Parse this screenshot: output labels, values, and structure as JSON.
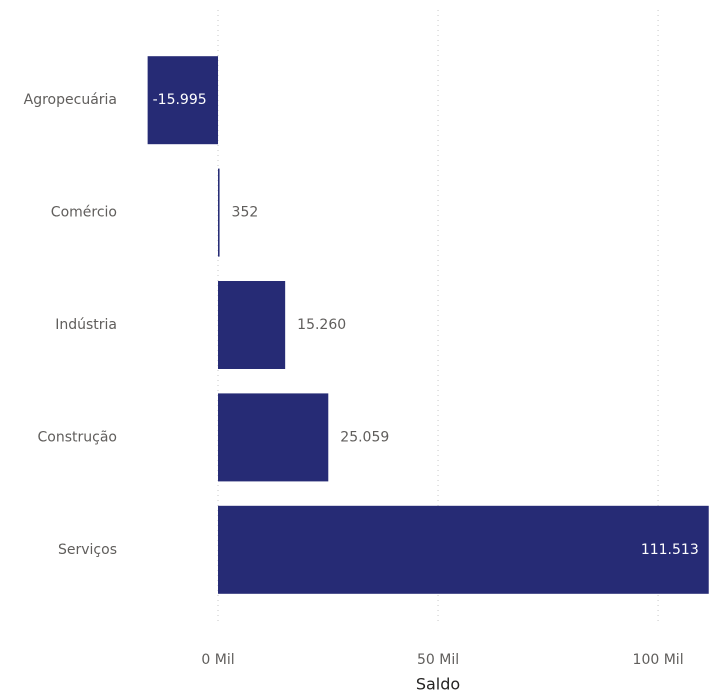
{
  "chart_data": {
    "type": "bar",
    "orientation": "horizontal",
    "categories": [
      "Agropecuária",
      "Comércio",
      "Indústria",
      "Construção",
      "Serviços"
    ],
    "values": [
      -15995,
      352,
      15260,
      25059,
      111513
    ],
    "value_labels": [
      "-15.995",
      "352",
      "15.260",
      "25.059",
      "111.513"
    ],
    "color": "#262b75",
    "x_label": "Saldo",
    "xlim": [
      -20000,
      111800
    ],
    "xticks": [
      {
        "value": 0,
        "label": "0 Mil"
      },
      {
        "value": 50000,
        "label": "50 Mil"
      },
      {
        "value": 100000,
        "label": "100 Mil"
      }
    ],
    "grid": true
  }
}
